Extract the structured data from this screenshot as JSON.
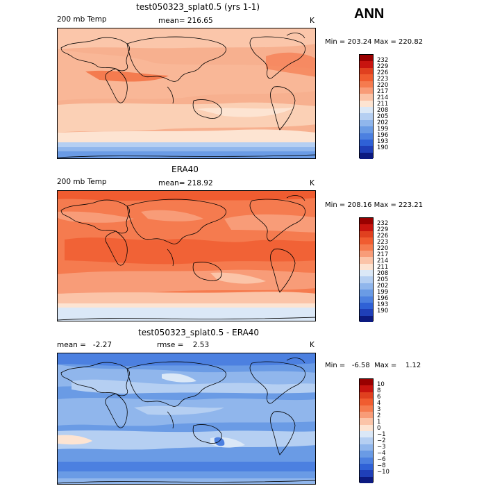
{
  "ann_label": "ANN",
  "panels": [
    {
      "title": "test050323_splat0.5 (yrs 1-1)",
      "left": "200 mb Temp",
      "center": "mean= 216.65",
      "unit": "K",
      "minmax": "Min = 203.24  Max = 220.82",
      "levels": [
        "232",
        "229",
        "226",
        "223",
        "220",
        "217",
        "214",
        "211",
        "208",
        "205",
        "202",
        "199",
        "196",
        "193",
        "190"
      ],
      "colors": [
        "#990000",
        "#c8140f",
        "#e0401f",
        "#f05c30",
        "#f57b4f",
        "#f89c78",
        "#fbc4a8",
        "#fde4d2",
        "#dbe8f7",
        "#b5cff2",
        "#90b6ec",
        "#6a9be5",
        "#4c80e0",
        "#2f61d6",
        "#1f3fb8",
        "#0c1a80"
      ]
    },
    {
      "title": "ERA40",
      "left": "200 mb Temp",
      "center": "mean= 218.92",
      "unit": "K",
      "minmax": "Min = 208.16  Max = 223.21",
      "levels": [
        "232",
        "229",
        "226",
        "223",
        "220",
        "217",
        "214",
        "211",
        "208",
        "205",
        "202",
        "199",
        "196",
        "193",
        "190"
      ],
      "colors": [
        "#990000",
        "#c8140f",
        "#e0401f",
        "#f05c30",
        "#f57b4f",
        "#f89c78",
        "#fbc4a8",
        "#fde4d2",
        "#dbe8f7",
        "#b5cff2",
        "#90b6ec",
        "#6a9be5",
        "#4c80e0",
        "#2f61d6",
        "#1f3fb8",
        "#0c1a80"
      ]
    },
    {
      "title": "test050323_splat0.5 - ERA40",
      "left": "mean =   -2.27",
      "center": "rmse =    2.53",
      "unit": "K",
      "minmax": "Min =   -6.58  Max =    1.12",
      "levels": [
        "10",
        "8",
        "6",
        "4",
        "3",
        "2",
        "1",
        "0",
        "−1",
        "−2",
        "−3",
        "−4",
        "−6",
        "−8",
        "−10"
      ],
      "colors": [
        "#990000",
        "#c8140f",
        "#e0401f",
        "#f05c30",
        "#f57b4f",
        "#f89c78",
        "#fbc4a8",
        "#fde4d2",
        "#dbe8f7",
        "#b5cff2",
        "#90b6ec",
        "#6a9be5",
        "#4c80e0",
        "#2f61d6",
        "#1f3fb8",
        "#0c1a80"
      ]
    }
  ]
}
